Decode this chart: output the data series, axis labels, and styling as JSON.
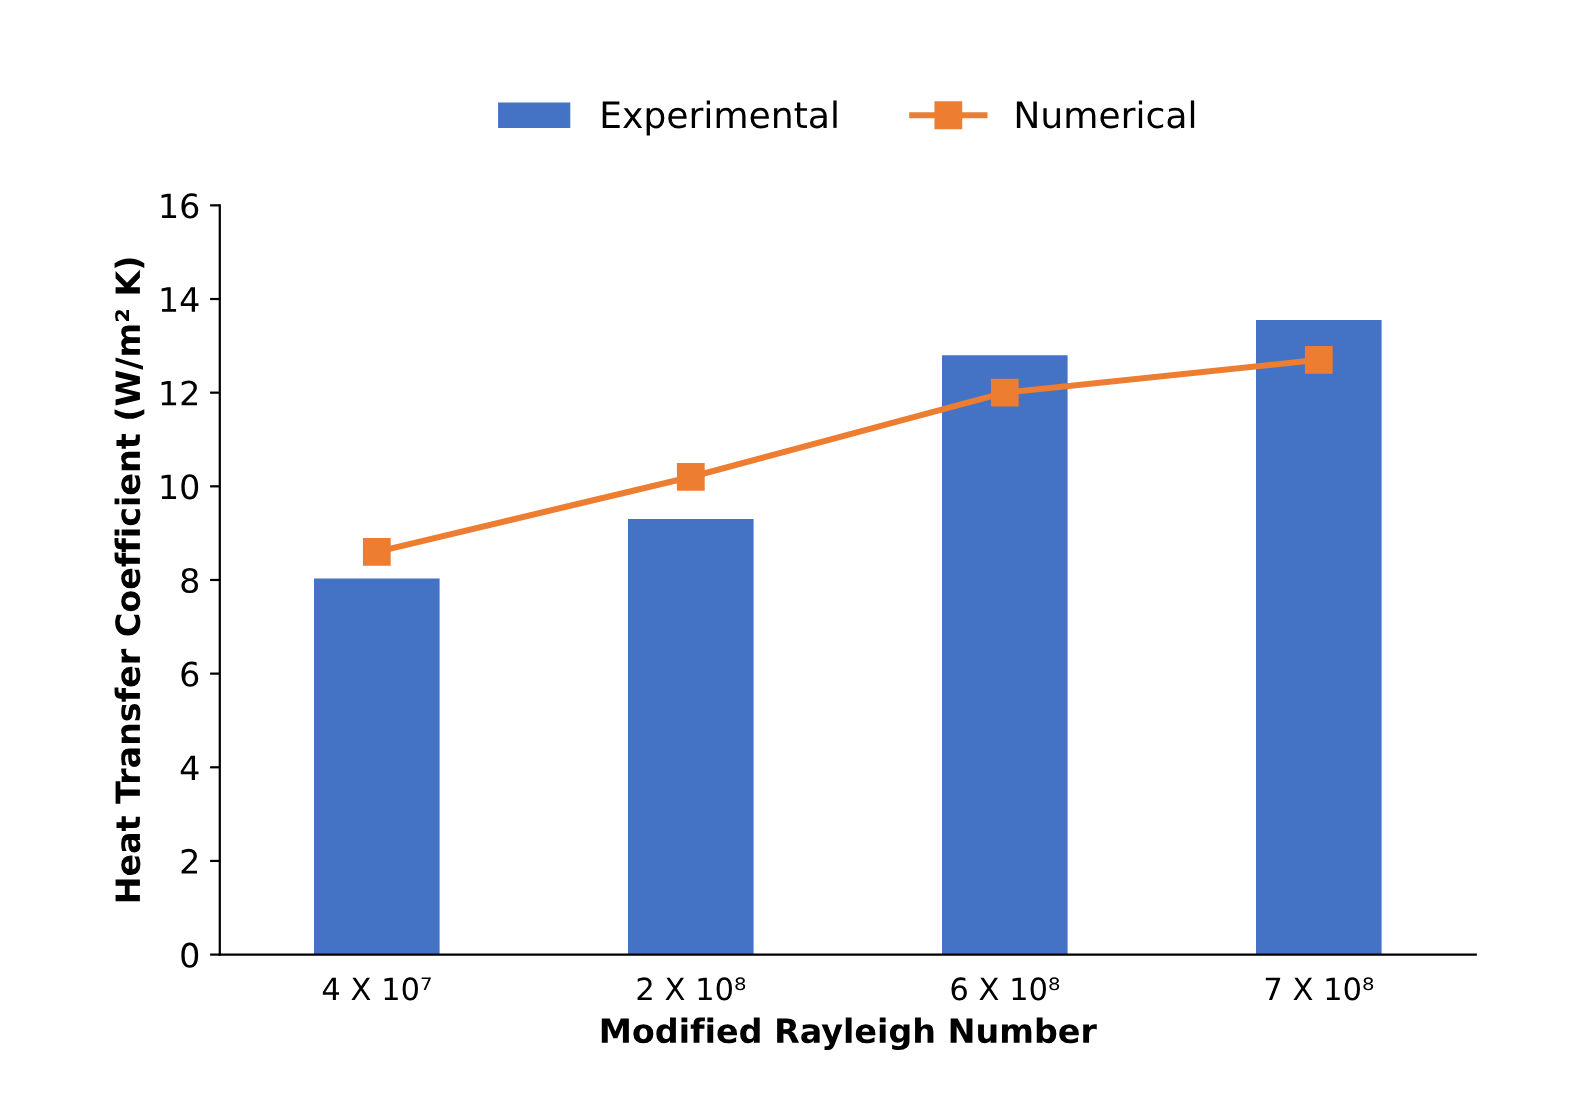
{
  "chart_data": {
    "type": "bar",
    "xlabel": "Modified Rayleigh Number",
    "ylabel": "Heat Transfer Coefficient (W/m² K)",
    "categories": [
      "4 X 10⁷",
      "2 X 10⁸",
      "6 X 10⁸",
      "7 X 10⁸"
    ],
    "series": [
      {
        "name": "Experimental",
        "color": "#4472c4",
        "values": [
          8.03,
          9.3,
          12.8,
          13.55
        ]
      },
      {
        "name": "Numerical",
        "type": "line",
        "color": "#ed7d31",
        "values": [
          8.6,
          10.2,
          12.0,
          12.7
        ],
        "marker": "square",
        "line_style": "solid"
      }
    ],
    "ylim": [
      0,
      16
    ],
    "yticks": [
      0,
      2,
      4,
      6,
      8,
      10,
      12,
      14,
      16
    ],
    "grid": false,
    "legend": "top"
  }
}
